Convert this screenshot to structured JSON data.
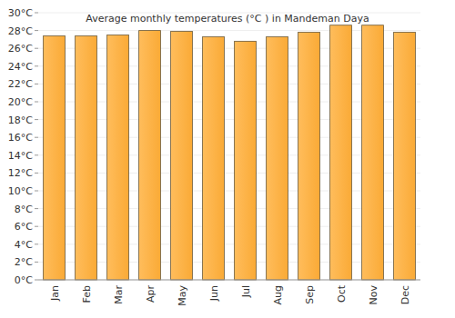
{
  "chart_data": {
    "type": "bar",
    "title": "Average monthly temperatures (°C ) in Mandeman Daya",
    "categories": [
      "Jan",
      "Feb",
      "Mar",
      "Apr",
      "May",
      "Jun",
      "Jul",
      "Aug",
      "Sep",
      "Oct",
      "Nov",
      "Dec"
    ],
    "values": [
      27.4,
      27.4,
      27.5,
      28.0,
      27.9,
      27.3,
      26.8,
      27.3,
      27.8,
      28.6,
      28.6,
      27.8
    ],
    "color": "#ffa726",
    "ylim": [
      0,
      30
    ],
    "yticks": [
      {
        "value": 0,
        "label": "0°C"
      },
      {
        "value": 2,
        "label": "2°C"
      },
      {
        "value": 4,
        "label": "4°C"
      },
      {
        "value": 6,
        "label": "6°C"
      },
      {
        "value": 8,
        "label": "8°C"
      },
      {
        "value": 10,
        "label": "10°C"
      },
      {
        "value": 12,
        "label": "12°C"
      },
      {
        "value": 14,
        "label": "14°C"
      },
      {
        "value": 16,
        "label": "16°C"
      },
      {
        "value": 18,
        "label": "18°C"
      },
      {
        "value": 20,
        "label": "20°C"
      },
      {
        "value": 22,
        "label": "22°C"
      },
      {
        "value": 24,
        "label": "24°C"
      },
      {
        "value": 26,
        "label": "26°C"
      },
      {
        "value": 28,
        "label": "28°C"
      },
      {
        "value": 30,
        "label": "30°C"
      }
    ],
    "grid": true
  }
}
